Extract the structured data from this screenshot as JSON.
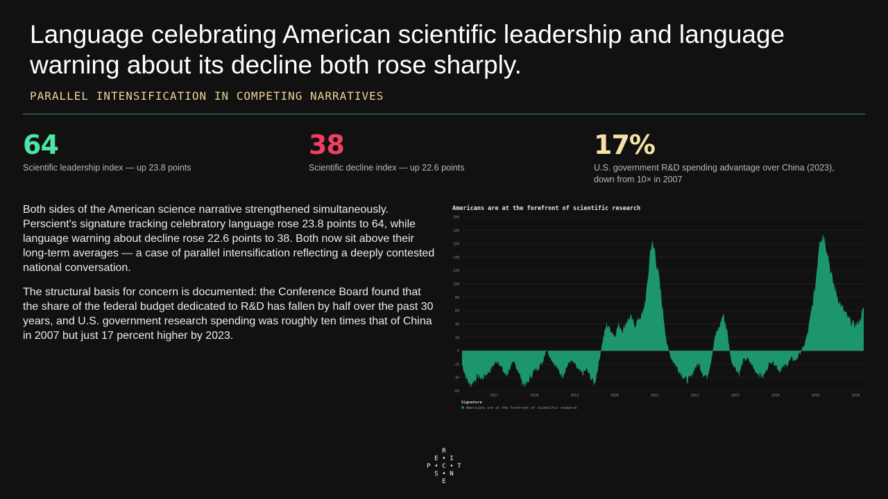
{
  "header": {
    "title": "Language celebrating American scientific leadership and language warning about its decline both rose sharply.",
    "subtitle": "PARALLEL INTENSIFICATION IN COMPETING NARRATIVES"
  },
  "kpis": [
    {
      "value": "64",
      "description": "Scientific leadership index — up 23.8 points",
      "color": "#4fe3a6"
    },
    {
      "value": "38",
      "description": "Scientific decline index — up 22.6 points",
      "color": "#f0405f"
    },
    {
      "value": "17%",
      "description": "U.S. government R&D spending advantage over China (2023), down from 10× in 2007",
      "color": "#f6e2a6"
    }
  ],
  "body": {
    "paragraph1": "Both sides of the American science narrative strengthened simultaneously. Perscient's signature tracking celebratory language rose 23.8 points to 64, while language warning about decline rose 22.6 points to 38. Both now sit above their long-term averages — a case of parallel intensification reflecting a deeply contested national conversation.",
    "paragraph2": "The structural basis for concern is documented: the Conference Board found that the share of the federal budget dedicated to R&D has fallen by half over the past 30 years, and U.S. government research spending was roughly ten times that of China in 2007 but just 17 percent higher by 2023."
  },
  "chart_data": {
    "type": "area",
    "title": "Americans are at the forefront of scientific research",
    "xlabel": "",
    "ylabel": "",
    "ylim": [
      -60,
      200
    ],
    "yticks": [
      -60,
      -40,
      -20,
      0,
      20,
      40,
      60,
      80,
      100,
      120,
      140,
      160,
      180,
      200
    ],
    "xlim": [
      2016.7,
      2026.7
    ],
    "xticks": [
      "2017",
      "2018",
      "2019",
      "2020",
      "2021",
      "2022",
      "2023",
      "2024",
      "2025",
      "2026"
    ],
    "grid": true,
    "legend": {
      "title": "Signature",
      "position": "bottom-left"
    },
    "series": [
      {
        "name": "Americans are at the forefront of scientific research",
        "color": "#1f9e74",
        "x": [
          2016.7,
          2016.8,
          2016.9,
          2017.0,
          2017.1,
          2017.2,
          2017.3,
          2017.4,
          2017.5,
          2017.6,
          2017.7,
          2017.8,
          2017.9,
          2018.0,
          2018.1,
          2018.2,
          2018.3,
          2018.4,
          2018.5,
          2018.6,
          2018.7,
          2018.8,
          2018.9,
          2019.0,
          2019.1,
          2019.2,
          2019.3,
          2019.4,
          2019.5,
          2019.6,
          2019.7,
          2019.8,
          2019.9,
          2020.0,
          2020.1,
          2020.2,
          2020.3,
          2020.4,
          2020.5,
          2020.6,
          2020.7,
          2020.8,
          2020.9,
          2021.0,
          2021.1,
          2021.2,
          2021.3,
          2021.4,
          2021.5,
          2021.6,
          2021.7,
          2021.8,
          2021.9,
          2022.0,
          2022.1,
          2022.2,
          2022.3,
          2022.4,
          2022.5,
          2022.6,
          2022.7,
          2022.8,
          2022.9,
          2023.0,
          2023.1,
          2023.2,
          2023.3,
          2023.4,
          2023.5,
          2023.6,
          2023.7,
          2023.8,
          2023.9,
          2024.0,
          2024.1,
          2024.2,
          2024.3,
          2024.4,
          2024.5,
          2024.6,
          2024.7,
          2024.8,
          2024.9,
          2025.0,
          2025.1,
          2025.2,
          2025.3,
          2025.4,
          2025.5,
          2025.6,
          2025.7,
          2025.8,
          2025.9,
          2026.0,
          2026.1,
          2026.2,
          2026.3,
          2026.4,
          2026.5,
          2026.6,
          2026.7
        ],
        "values": [
          -20,
          -40,
          -52,
          -45,
          -38,
          -42,
          -35,
          -30,
          -20,
          -15,
          -28,
          -38,
          -25,
          -18,
          -30,
          -48,
          -52,
          -40,
          -30,
          -25,
          -18,
          3,
          -10,
          -20,
          -30,
          -38,
          -25,
          -15,
          -20,
          -30,
          -35,
          -28,
          -40,
          -50,
          -20,
          15,
          40,
          32,
          22,
          40,
          30,
          45,
          50,
          38,
          48,
          55,
          90,
          160,
          150,
          110,
          60,
          10,
          -10,
          -20,
          -30,
          -38,
          -45,
          -40,
          -25,
          -20,
          -35,
          -40,
          -15,
          22,
          35,
          55,
          30,
          -15,
          -25,
          -35,
          -15,
          -12,
          -20,
          -30,
          -35,
          -40,
          -25,
          -15,
          -20,
          -30,
          -25,
          -20,
          -12,
          -15,
          -5,
          5,
          25,
          60,
          100,
          170,
          175,
          150,
          110,
          90,
          72,
          60,
          50,
          42,
          38,
          45,
          64
        ]
      }
    ]
  },
  "logo": {
    "letters": [
      "R",
      "E",
      "I",
      "P",
      "C",
      "T",
      "S",
      "N",
      "E"
    ]
  }
}
